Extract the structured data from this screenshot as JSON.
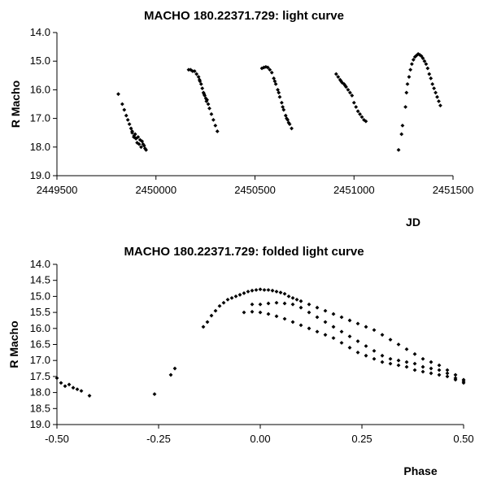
{
  "chart_data": [
    {
      "type": "scatter",
      "title": "MACHO 180.22371.729: light curve",
      "xlabel": "JD",
      "ylabel": "R Macho",
      "xlim": [
        2449500,
        2451500
      ],
      "ylim": [
        14.0,
        19.0
      ],
      "y_inverted": true,
      "grid": false,
      "legend": "none",
      "x_ticks": [
        {
          "value": 2449500,
          "label": "2449500"
        },
        {
          "value": 2450000,
          "label": "2450000"
        },
        {
          "value": 2450500,
          "label": "2450500"
        },
        {
          "value": 2451000,
          "label": "2451000"
        },
        {
          "value": 2451500,
          "label": "2451500"
        }
      ],
      "y_ticks": [
        {
          "value": 14.0,
          "label": "14.0"
        },
        {
          "value": 15.0,
          "label": "15.0"
        },
        {
          "value": 16.0,
          "label": "16.0"
        },
        {
          "value": 17.0,
          "label": "17.0"
        },
        {
          "value": 18.0,
          "label": "18.0"
        },
        {
          "value": 19.0,
          "label": "19.0"
        }
      ],
      "series": [
        {
          "marker": "diamond",
          "color": "#000000",
          "points": [
            [
              2449810,
              16.15
            ],
            [
              2449830,
              16.5
            ],
            [
              2449840,
              16.7
            ],
            [
              2449850,
              16.9
            ],
            [
              2449858,
              17.05
            ],
            [
              2449866,
              17.2
            ],
            [
              2449874,
              17.35
            ],
            [
              2449880,
              17.5
            ],
            [
              2449888,
              17.65
            ],
            [
              2449895,
              17.55
            ],
            [
              2449900,
              17.7
            ],
            [
              2449905,
              17.85
            ],
            [
              2449910,
              17.65
            ],
            [
              2449915,
              17.9
            ],
            [
              2449920,
              17.75
            ],
            [
              2449925,
              18.0
            ],
            [
              2449930,
              17.8
            ],
            [
              2449935,
              17.9
            ],
            [
              2449940,
              17.95
            ],
            [
              2449945,
              18.05
            ],
            [
              2449950,
              18.1
            ],
            [
              2449880,
              17.45
            ],
            [
              2449890,
              17.6
            ],
            [
              2449898,
              17.7
            ],
            [
              2450165,
              15.3
            ],
            [
              2450175,
              15.3
            ],
            [
              2450185,
              15.35
            ],
            [
              2450195,
              15.35
            ],
            [
              2450205,
              15.45
            ],
            [
              2450215,
              15.55
            ],
            [
              2450222,
              15.7
            ],
            [
              2450228,
              15.8
            ],
            [
              2450234,
              15.95
            ],
            [
              2450240,
              16.1
            ],
            [
              2450246,
              16.2
            ],
            [
              2450252,
              16.3
            ],
            [
              2450258,
              16.35
            ],
            [
              2450264,
              16.5
            ],
            [
              2450270,
              16.65
            ],
            [
              2450280,
              16.85
            ],
            [
              2450290,
              17.05
            ],
            [
              2450300,
              17.25
            ],
            [
              2450310,
              17.45
            ],
            [
              2450220,
              15.65
            ],
            [
              2450243,
              16.15
            ],
            [
              2450255,
              16.4
            ],
            [
              2450535,
              15.25
            ],
            [
              2450545,
              15.22
            ],
            [
              2450555,
              15.2
            ],
            [
              2450565,
              15.22
            ],
            [
              2450575,
              15.3
            ],
            [
              2450585,
              15.4
            ],
            [
              2450595,
              15.6
            ],
            [
              2450605,
              15.8
            ],
            [
              2450615,
              16.0
            ],
            [
              2450625,
              16.25
            ],
            [
              2450635,
              16.45
            ],
            [
              2450645,
              16.7
            ],
            [
              2450655,
              16.9
            ],
            [
              2450665,
              17.05
            ],
            [
              2450675,
              17.2
            ],
            [
              2450685,
              17.35
            ],
            [
              2450600,
              15.7
            ],
            [
              2450620,
              16.1
            ],
            [
              2450640,
              16.6
            ],
            [
              2450660,
              17.0
            ],
            [
              2450670,
              17.15
            ],
            [
              2450910,
              15.45
            ],
            [
              2450920,
              15.55
            ],
            [
              2450930,
              15.65
            ],
            [
              2450940,
              15.75
            ],
            [
              2450950,
              15.8
            ],
            [
              2450960,
              15.9
            ],
            [
              2450970,
              16.0
            ],
            [
              2450980,
              16.1
            ],
            [
              2450990,
              16.2
            ],
            [
              2451000,
              16.45
            ],
            [
              2451010,
              16.6
            ],
            [
              2451020,
              16.75
            ],
            [
              2451030,
              16.85
            ],
            [
              2451040,
              16.95
            ],
            [
              2451050,
              17.05
            ],
            [
              2451060,
              17.1
            ],
            [
              2450935,
              15.7
            ],
            [
              2450955,
              15.85
            ],
            [
              2451225,
              18.1
            ],
            [
              2451240,
              17.55
            ],
            [
              2451245,
              17.25
            ],
            [
              2451260,
              16.6
            ],
            [
              2451265,
              16.1
            ],
            [
              2451270,
              15.8
            ],
            [
              2451278,
              15.55
            ],
            [
              2451285,
              15.3
            ],
            [
              2451292,
              15.1
            ],
            [
              2451300,
              14.95
            ],
            [
              2451308,
              14.85
            ],
            [
              2451316,
              14.8
            ],
            [
              2451324,
              14.75
            ],
            [
              2451332,
              14.78
            ],
            [
              2451340,
              14.82
            ],
            [
              2451348,
              14.9
            ],
            [
              2451356,
              15.0
            ],
            [
              2451364,
              15.1
            ],
            [
              2451372,
              15.25
            ],
            [
              2451380,
              15.45
            ],
            [
              2451388,
              15.6
            ],
            [
              2451396,
              15.8
            ],
            [
              2451404,
              15.95
            ],
            [
              2451412,
              16.1
            ],
            [
              2451420,
              16.25
            ],
            [
              2451428,
              16.4
            ],
            [
              2451436,
              16.55
            ]
          ]
        }
      ]
    },
    {
      "type": "scatter",
      "title": "MACHO 180.22371.729: folded light curve",
      "xlabel": "Phase",
      "ylabel": "R Macho",
      "xlim": [
        -0.5,
        0.5
      ],
      "ylim": [
        14.0,
        19.0
      ],
      "y_inverted": true,
      "grid": false,
      "legend": "none",
      "x_ticks": [
        {
          "value": -0.5,
          "label": "-0.50"
        },
        {
          "value": -0.25,
          "label": "-0.25"
        },
        {
          "value": 0.0,
          "label": "0.00"
        },
        {
          "value": 0.25,
          "label": "0.25"
        },
        {
          "value": 0.5,
          "label": "0.50"
        }
      ],
      "y_ticks": [
        {
          "value": 14.0,
          "label": "14.0"
        },
        {
          "value": 14.5,
          "label": "14.5"
        },
        {
          "value": 15.0,
          "label": "15.0"
        },
        {
          "value": 15.5,
          "label": "15.5"
        },
        {
          "value": 16.0,
          "label": "16.0"
        },
        {
          "value": 16.5,
          "label": "16.5"
        },
        {
          "value": 17.0,
          "label": "17.0"
        },
        {
          "value": 17.5,
          "label": "17.5"
        },
        {
          "value": 18.0,
          "label": "18.0"
        },
        {
          "value": 18.5,
          "label": "18.5"
        },
        {
          "value": 19.0,
          "label": "19.0"
        }
      ],
      "series": [
        {
          "marker": "diamond",
          "color": "#000000",
          "points": [
            [
              -0.5,
              17.55
            ],
            [
              -0.49,
              17.7
            ],
            [
              -0.48,
              17.8
            ],
            [
              -0.47,
              17.75
            ],
            [
              -0.46,
              17.85
            ],
            [
              -0.45,
              17.9
            ],
            [
              -0.44,
              17.95
            ],
            [
              -0.42,
              18.1
            ],
            [
              -0.26,
              18.05
            ],
            [
              -0.22,
              17.45
            ],
            [
              -0.21,
              17.25
            ],
            [
              -0.14,
              15.95
            ],
            [
              -0.13,
              15.8
            ],
            [
              -0.12,
              15.6
            ],
            [
              -0.11,
              15.45
            ],
            [
              -0.1,
              15.3
            ],
            [
              -0.09,
              15.2
            ],
            [
              -0.08,
              15.1
            ],
            [
              -0.07,
              15.05
            ],
            [
              -0.06,
              15.0
            ],
            [
              -0.05,
              14.95
            ],
            [
              -0.04,
              14.9
            ],
            [
              -0.03,
              14.85
            ],
            [
              -0.02,
              14.82
            ],
            [
              -0.01,
              14.8
            ],
            [
              0.0,
              14.78
            ],
            [
              0.01,
              14.8
            ],
            [
              0.02,
              14.8
            ],
            [
              0.03,
              14.82
            ],
            [
              0.04,
              14.85
            ],
            [
              0.05,
              14.88
            ],
            [
              0.06,
              14.92
            ],
            [
              0.07,
              15.0
            ],
            [
              0.08,
              15.05
            ],
            [
              0.09,
              15.1
            ],
            [
              0.1,
              15.15
            ],
            [
              0.12,
              15.25
            ],
            [
              0.14,
              15.35
            ],
            [
              0.16,
              15.45
            ],
            [
              0.18,
              15.55
            ],
            [
              0.2,
              15.65
            ],
            [
              0.22,
              15.75
            ],
            [
              0.24,
              15.85
            ],
            [
              0.26,
              15.95
            ],
            [
              0.28,
              16.05
            ],
            [
              0.3,
              16.2
            ],
            [
              0.32,
              16.35
            ],
            [
              0.34,
              16.5
            ],
            [
              0.36,
              16.65
            ],
            [
              0.38,
              16.8
            ],
            [
              0.4,
              16.95
            ],
            [
              0.42,
              17.05
            ],
            [
              0.44,
              17.15
            ],
            [
              0.46,
              17.3
            ],
            [
              0.48,
              17.45
            ],
            [
              0.5,
              17.6
            ],
            [
              -0.04,
              15.5
            ],
            [
              -0.02,
              15.48
            ],
            [
              0.0,
              15.5
            ],
            [
              0.02,
              15.55
            ],
            [
              0.04,
              15.62
            ],
            [
              0.06,
              15.7
            ],
            [
              0.08,
              15.8
            ],
            [
              0.1,
              15.9
            ],
            [
              0.12,
              16.0
            ],
            [
              0.14,
              16.1
            ],
            [
              0.16,
              16.2
            ],
            [
              0.18,
              16.3
            ],
            [
              0.2,
              16.45
            ],
            [
              0.22,
              16.6
            ],
            [
              0.24,
              16.75
            ],
            [
              0.26,
              16.85
            ],
            [
              0.28,
              16.95
            ],
            [
              0.3,
              17.05
            ],
            [
              0.32,
              17.1
            ],
            [
              0.34,
              17.15
            ],
            [
              0.36,
              17.2
            ],
            [
              0.38,
              17.3
            ],
            [
              0.4,
              17.35
            ],
            [
              0.42,
              17.4
            ],
            [
              0.44,
              17.45
            ],
            [
              0.46,
              17.5
            ],
            [
              0.48,
              17.6
            ],
            [
              0.5,
              17.7
            ],
            [
              -0.02,
              15.25
            ],
            [
              0.0,
              15.25
            ],
            [
              0.02,
              15.22
            ],
            [
              0.04,
              15.2
            ],
            [
              0.06,
              15.22
            ],
            [
              0.08,
              15.25
            ],
            [
              0.1,
              15.35
            ],
            [
              0.12,
              15.5
            ],
            [
              0.14,
              15.65
            ],
            [
              0.16,
              15.8
            ],
            [
              0.18,
              15.95
            ],
            [
              0.2,
              16.1
            ],
            [
              0.22,
              16.25
            ],
            [
              0.24,
              16.4
            ],
            [
              0.26,
              16.55
            ],
            [
              0.28,
              16.7
            ],
            [
              0.3,
              16.85
            ],
            [
              0.32,
              16.95
            ],
            [
              0.34,
              17.0
            ],
            [
              0.36,
              17.05
            ],
            [
              0.38,
              17.1
            ],
            [
              0.4,
              17.2
            ],
            [
              0.42,
              17.25
            ],
            [
              0.44,
              17.3
            ],
            [
              0.46,
              17.4
            ],
            [
              0.48,
              17.55
            ],
            [
              0.5,
              17.65
            ]
          ]
        }
      ]
    }
  ]
}
